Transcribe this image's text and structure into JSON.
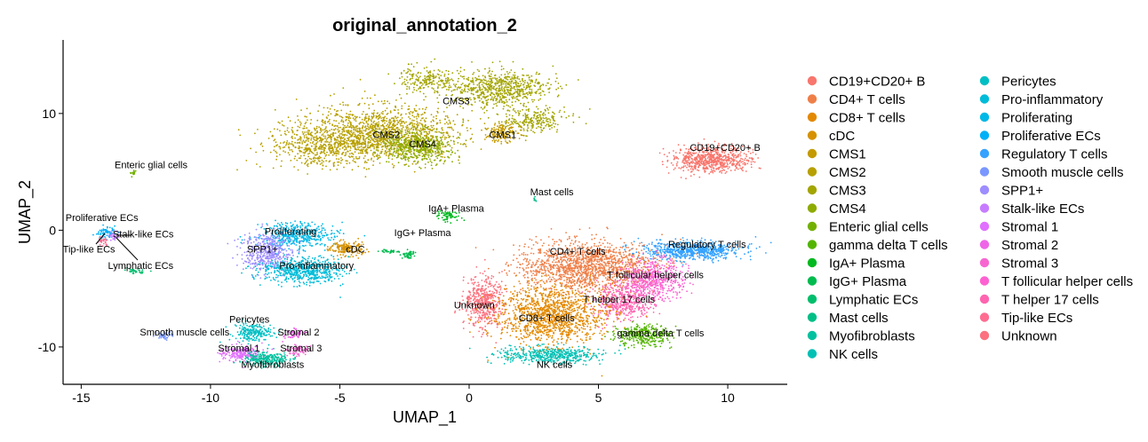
{
  "chart_data": {
    "type": "scatter",
    "title": "original_annotation_2",
    "xlabel": "UMAP_1",
    "ylabel": "UMAP_2",
    "xlim": [
      -15.7,
      12.3
    ],
    "ylim": [
      -13.2,
      16.3
    ],
    "xticks": [
      -15,
      -10,
      -5,
      0,
      5,
      10
    ],
    "yticks": [
      -10,
      0,
      10
    ],
    "grid": false,
    "legend_position": "right",
    "legend_columns": 2,
    "series": [
      {
        "name": "CD19+CD20+ B",
        "color": "#F8766D"
      },
      {
        "name": "CD4+ T cells",
        "color": "#EF7F48"
      },
      {
        "name": "CD8+ T cells",
        "color": "#E38900"
      },
      {
        "name": "cDC",
        "color": "#D59100"
      },
      {
        "name": "CMS1",
        "color": "#C49A00"
      },
      {
        "name": "CMS2",
        "color": "#B7A000"
      },
      {
        "name": "CMS3",
        "color": "#A3A500"
      },
      {
        "name": "CMS4",
        "color": "#8EAB00"
      },
      {
        "name": "Enteric glial cells",
        "color": "#72B000"
      },
      {
        "name": "gamma delta T cells",
        "color": "#53B400"
      },
      {
        "name": "IgA+ Plasma",
        "color": "#00B81F"
      },
      {
        "name": "IgG+ Plasma",
        "color": "#00BB4E"
      },
      {
        "name": "Lymphatic ECs",
        "color": "#00BE6C"
      },
      {
        "name": "Mast cells",
        "color": "#00BF86"
      },
      {
        "name": "Myofibroblasts",
        "color": "#00C19F"
      },
      {
        "name": "NK cells",
        "color": "#00C0B4"
      },
      {
        "name": "Pericytes",
        "color": "#00BFC4"
      },
      {
        "name": "Pro-inflammatory",
        "color": "#00BCD8"
      },
      {
        "name": "Proliferating",
        "color": "#00B8E7"
      },
      {
        "name": "Proliferative ECs",
        "color": "#00B0F6"
      },
      {
        "name": "Regulatory T cells",
        "color": "#35A2FF"
      },
      {
        "name": "Smooth muscle cells",
        "color": "#7997FF"
      },
      {
        "name": "SPP1+",
        "color": "#9D8DFF"
      },
      {
        "name": "Stalk-like ECs",
        "color": "#C77CFF"
      },
      {
        "name": "Stromal 1",
        "color": "#E16FFF"
      },
      {
        "name": "Stromal 2",
        "color": "#EE66E7"
      },
      {
        "name": "Stromal 3",
        "color": "#F766D0"
      },
      {
        "name": "T follicular helper cells",
        "color": "#FD61D1"
      },
      {
        "name": "T helper 17 cells",
        "color": "#FF64B0"
      },
      {
        "name": "Tip-like ECs",
        "color": "#FF6C91"
      },
      {
        "name": "Unknown",
        "color": "#FC717F"
      }
    ],
    "annotations": [
      {
        "text": "CMS3",
        "x": -0.5,
        "y": 11.1
      },
      {
        "text": "CMS2",
        "x": -3.2,
        "y": 8.2
      },
      {
        "text": "CMS4",
        "x": -1.8,
        "y": 7.4
      },
      {
        "text": "CMS1",
        "x": 1.3,
        "y": 8.2
      },
      {
        "text": "CD19+CD20+ B",
        "x": 9.9,
        "y": 7.1
      },
      {
        "text": "Enteric glial cells",
        "x": -12.3,
        "y": 5.6
      },
      {
        "text": "Mast cells",
        "x": 3.2,
        "y": 3.3
      },
      {
        "text": "IgA+ Plasma",
        "x": -0.5,
        "y": 1.9
      },
      {
        "text": "IgG+ Plasma",
        "x": -1.8,
        "y": -0.2
      },
      {
        "text": "Proliferative ECs",
        "x": -14.2,
        "y": 1.1
      },
      {
        "text": "Stalk-like ECs",
        "x": -12.6,
        "y": -0.3
      },
      {
        "text": "Tip-like ECs",
        "x": -14.7,
        "y": -1.6
      },
      {
        "text": "Lymphatic ECs",
        "x": -12.7,
        "y": -3.0
      },
      {
        "text": "Proliferating",
        "x": -6.9,
        "y": -0.1
      },
      {
        "text": "SPP1+",
        "x": -8.0,
        "y": -1.6
      },
      {
        "text": "cDC",
        "x": -4.4,
        "y": -1.6
      },
      {
        "text": "Pro-inflammatory",
        "x": -5.9,
        "y": -3.0
      },
      {
        "text": "CD4+ T cells",
        "x": 4.2,
        "y": -1.8
      },
      {
        "text": "Regulatory T cells",
        "x": 9.2,
        "y": -1.2
      },
      {
        "text": "T follicular helper cells",
        "x": 7.2,
        "y": -3.8
      },
      {
        "text": "T helper 17 cells",
        "x": 5.8,
        "y": -5.9
      },
      {
        "text": "Unknown",
        "x": 0.2,
        "y": -6.4
      },
      {
        "text": "CD8+ T cells",
        "x": 3.0,
        "y": -7.5
      },
      {
        "text": "gamma delta T cells",
        "x": 7.4,
        "y": -8.8
      },
      {
        "text": "NK cells",
        "x": 3.3,
        "y": -11.5
      },
      {
        "text": "Pericytes",
        "x": -8.5,
        "y": -7.6
      },
      {
        "text": "Smooth muscle cells",
        "x": -11.0,
        "y": -8.7
      },
      {
        "text": "Stromal 2",
        "x": -6.6,
        "y": -8.7
      },
      {
        "text": "Stromal 1",
        "x": -8.9,
        "y": -10.1
      },
      {
        "text": "Stromal 3",
        "x": -6.5,
        "y": -10.1
      },
      {
        "text": "Myofibroblasts",
        "x": -7.6,
        "y": -11.5
      }
    ]
  }
}
